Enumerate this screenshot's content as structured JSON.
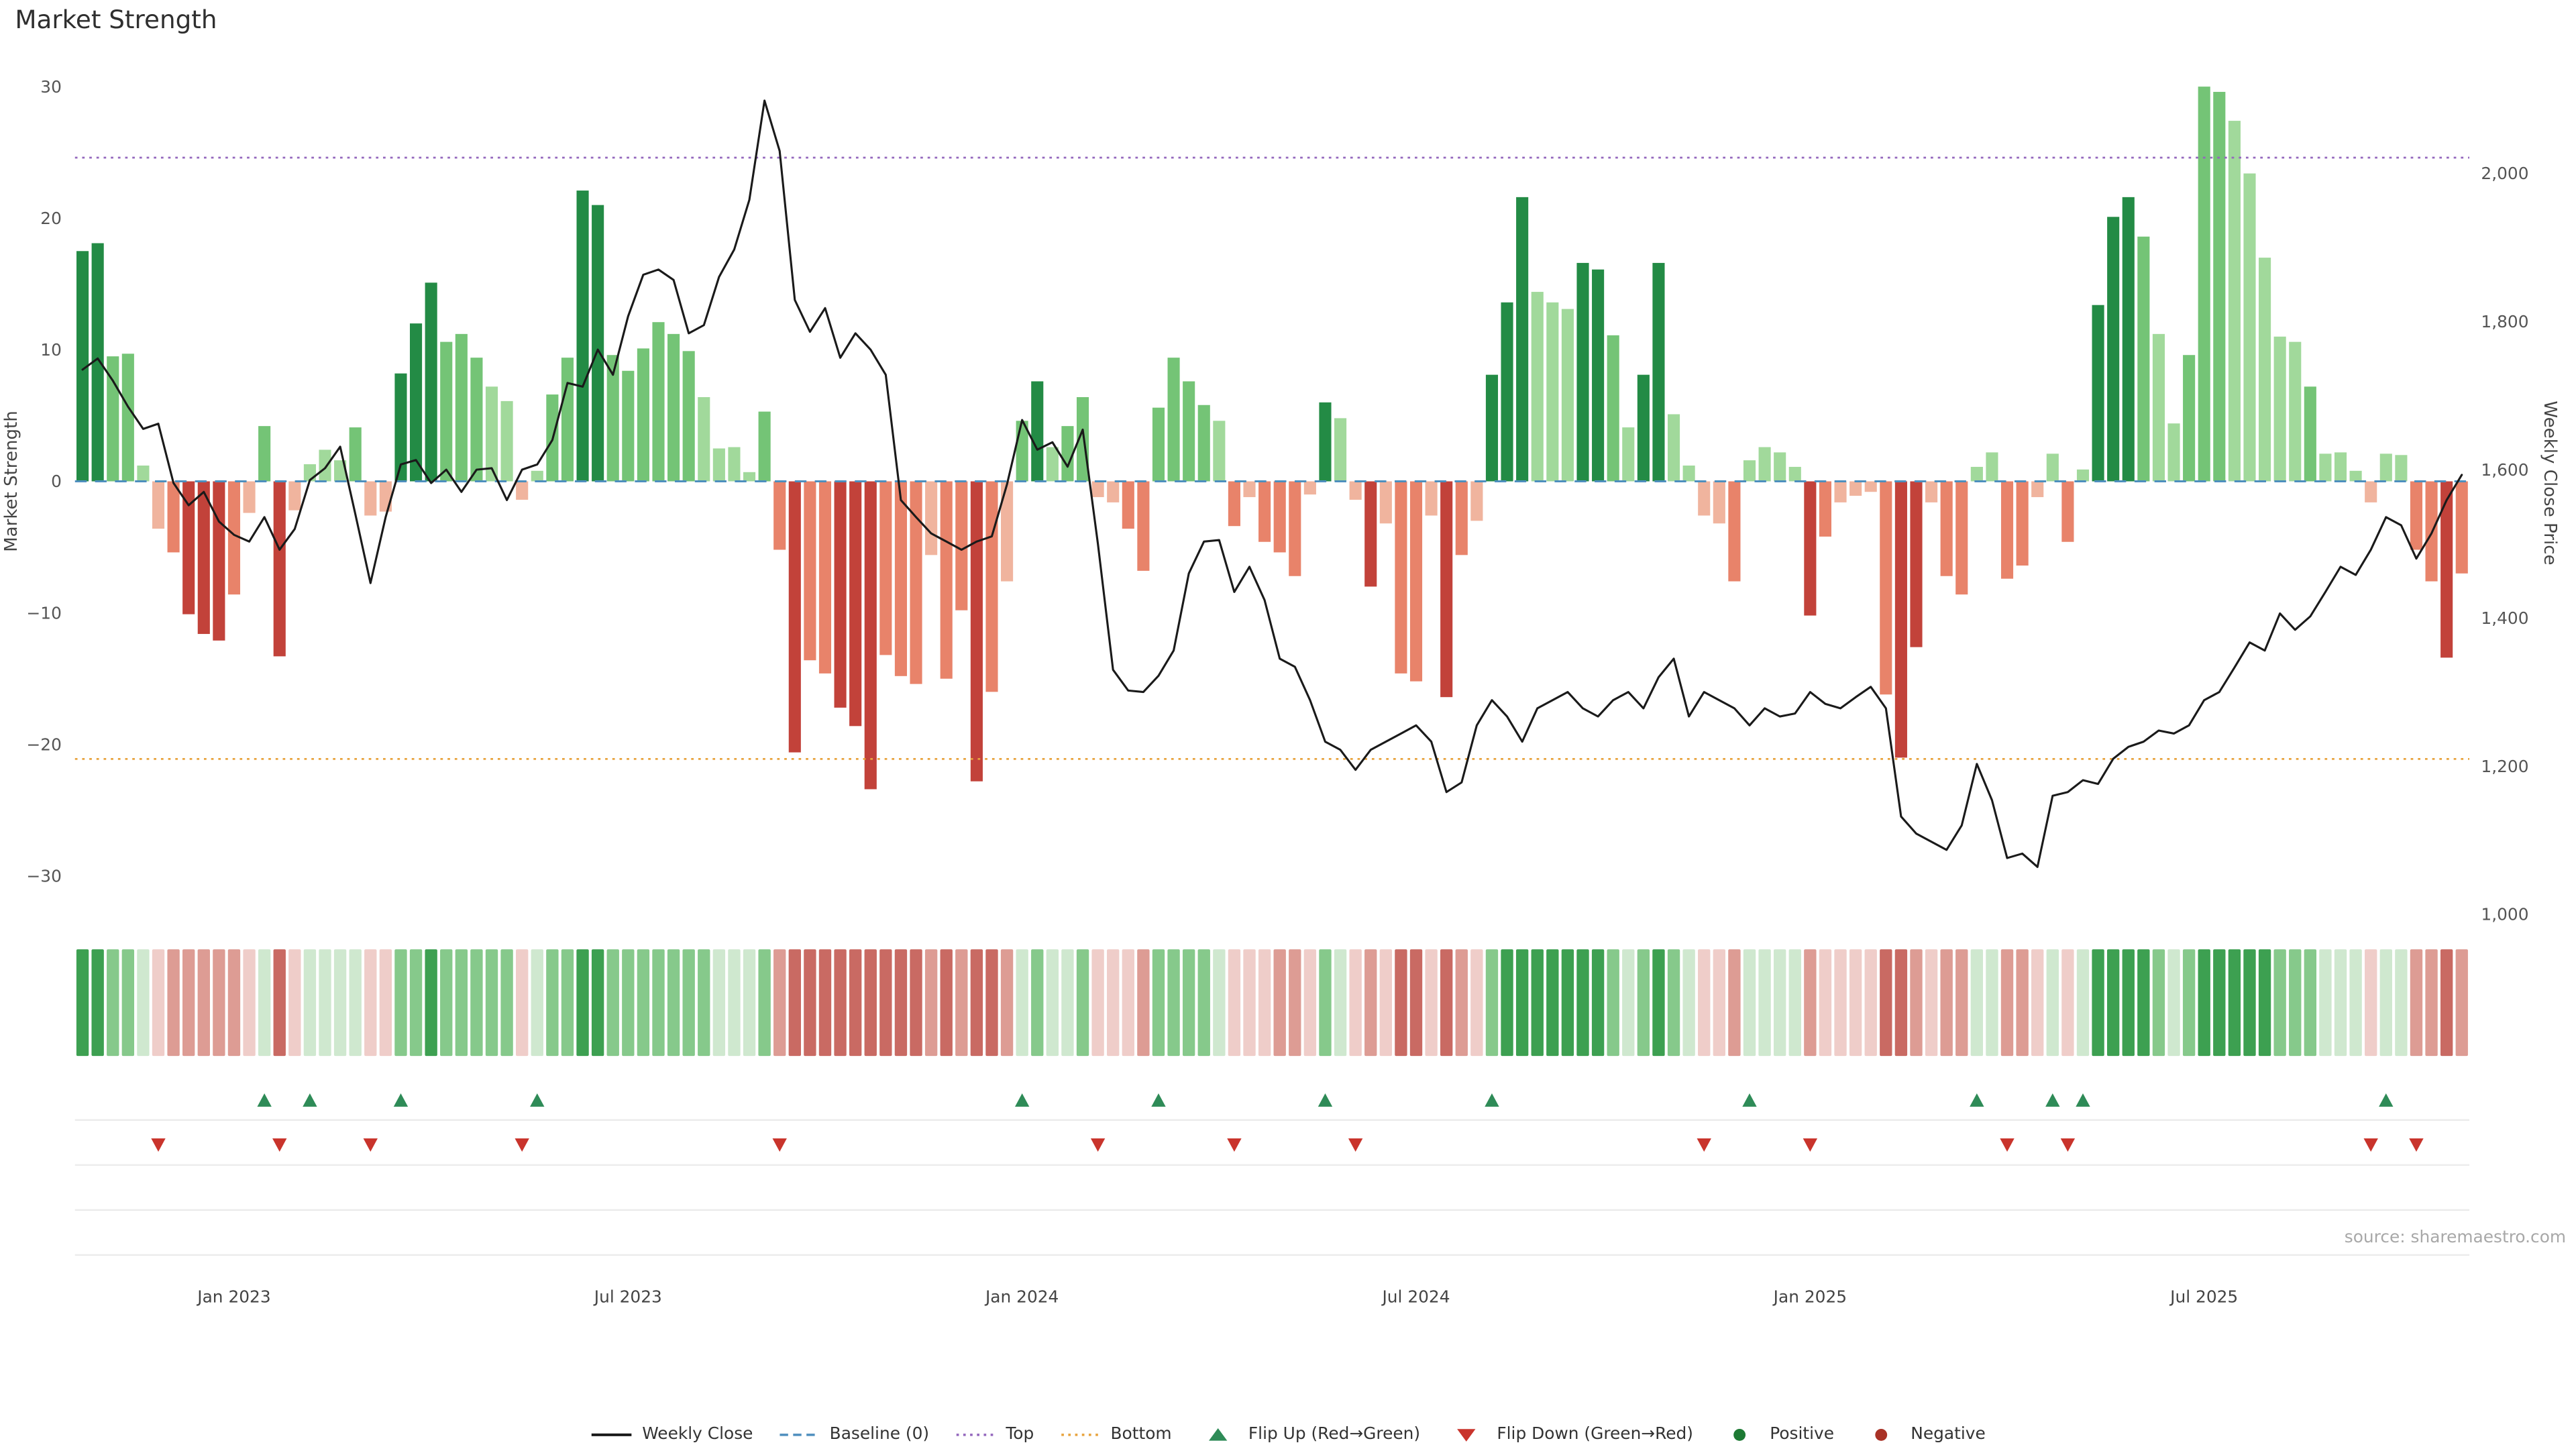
{
  "title": "Market Strength",
  "source": "source: sharemaestro.com",
  "axes": {
    "left_label": "Market Strength",
    "right_label": "Weekly Close Price",
    "left_tick_values": [
      30,
      20,
      10,
      0,
      -10,
      -20,
      -30
    ],
    "right_tick_values": [
      2000,
      1800,
      1600,
      1400,
      1200,
      1000
    ],
    "x_ticks": [
      {
        "label": "Jan 2023",
        "week": 11
      },
      {
        "label": "Jul 2023",
        "week": 37
      },
      {
        "label": "Jan 2024",
        "week": 63
      },
      {
        "label": "Jul 2024",
        "week": 89
      },
      {
        "label": "Jan 2025",
        "week": 115
      },
      {
        "label": "Jul 2025",
        "week": 141
      }
    ]
  },
  "colors": {
    "line": "#1a1a1a",
    "baseline": "#4e8fbe",
    "top": "#9467bd",
    "bottom": "#e8a33d",
    "flip_up": "#2e8b57",
    "flip_down": "#c9342c",
    "positive_dot": "#1d7a34",
    "negative_dot": "#a93226",
    "bar": {
      "g3": "#238b45",
      "g2": "#74c476",
      "g1": "#a1d99b",
      "r3": "#c2423a",
      "r2": "#e8836a",
      "r1": "#f0b49e"
    },
    "heat": {
      "g3": "#3da051",
      "g2": "#86c98b",
      "g1": "#cfe8cf",
      "r3": "#c96a63",
      "r2": "#dd9c94",
      "r1": "#efcdc9"
    },
    "grid": "#ececec"
  },
  "legend": [
    {
      "label": "Weekly Close",
      "type": "line",
      "color": "#1a1a1a"
    },
    {
      "label": "Baseline (0)",
      "type": "dashed",
      "color": "#4e8fbe"
    },
    {
      "label": "Top",
      "type": "dotted",
      "color": "#9467bd"
    },
    {
      "label": "Bottom",
      "type": "dotted",
      "color": "#e8a33d"
    },
    {
      "label": "Flip Up (Red→Green)",
      "type": "triangle-up",
      "color": "#2e8b57"
    },
    {
      "label": "Flip Down (Green→Red)",
      "type": "triangle-down",
      "color": "#c9342c"
    },
    {
      "label": "Positive",
      "type": "dot",
      "color": "#1d7a34"
    },
    {
      "label": "Negative",
      "type": "dot",
      "color": "#a93226"
    }
  ],
  "chart_data": {
    "type": "bar+line+heatmap",
    "title": "Market Strength",
    "frequency": "weekly",
    "start_date": "2022-10-28",
    "ylabel_left": "Market Strength",
    "ylabel_right": "Weekly Close Price",
    "ylim_left": [
      -31,
      31
    ],
    "ylim_right": [
      1000,
      2100
    ],
    "baseline": 0,
    "top_threshold": 24.6,
    "bottom_threshold": -21.1,
    "legend_position": "bottom",
    "strength": [
      17.5,
      18.1,
      9.5,
      9.7,
      1.2,
      -3.6,
      -5.4,
      -10.1,
      -11.6,
      -12.1,
      -8.6,
      -2.4,
      4.2,
      -13.3,
      -2.2,
      1.3,
      2.4,
      1.6,
      4.1,
      -2.6,
      -2.3,
      8.2,
      12.0,
      15.1,
      10.6,
      11.2,
      9.4,
      7.2,
      6.1,
      -1.4,
      0.8,
      6.6,
      9.4,
      22.1,
      21.0,
      9.6,
      8.4,
      10.1,
      12.1,
      11.2,
      9.9,
      6.4,
      2.5,
      2.6,
      0.7,
      5.3,
      -5.2,
      -20.6,
      -13.6,
      -14.6,
      -17.2,
      -18.6,
      -23.4,
      -13.2,
      -14.8,
      -15.4,
      -5.6,
      -15.0,
      -9.8,
      -22.8,
      -16.0,
      -7.6,
      4.6,
      7.6,
      2.6,
      4.2,
      6.4,
      -1.2,
      -1.6,
      -3.6,
      -6.8,
      5.6,
      9.4,
      7.6,
      5.8,
      4.6,
      -3.4,
      -1.2,
      -4.6,
      -5.4,
      -7.2,
      -1.0,
      6.0,
      4.8,
      -1.4,
      -8.0,
      -3.2,
      -14.6,
      -15.2,
      -2.6,
      -16.4,
      -5.6,
      -3.0,
      8.1,
      13.6,
      21.6,
      14.4,
      13.6,
      13.1,
      16.6,
      16.1,
      11.1,
      4.1,
      8.1,
      16.6,
      5.1,
      1.2,
      -2.6,
      -3.2,
      -7.6,
      1.6,
      2.6,
      2.2,
      1.1,
      -10.2,
      -4.2,
      -1.6,
      -1.1,
      -0.8,
      -16.2,
      -21.0,
      -12.6,
      -1.6,
      -7.2,
      -8.6,
      1.1,
      2.2,
      -7.4,
      -6.4,
      -1.2,
      2.1,
      -4.6,
      0.9,
      13.4,
      20.1,
      21.6,
      18.6,
      11.2,
      4.4,
      9.6,
      30.0,
      29.6,
      27.4,
      23.4,
      17.0,
      11.0,
      10.6,
      7.2,
      2.1,
      2.2,
      0.8,
      -1.6,
      2.1,
      2.0,
      -5.2,
      -7.6,
      -13.4,
      -7.0
    ],
    "tone": [
      "g3",
      "g3",
      "g2",
      "g2",
      "g1",
      "r1",
      "r2",
      "r3",
      "r3",
      "r3",
      "r2",
      "r1",
      "g2",
      "r3",
      "r1",
      "g1",
      "g1",
      "g1",
      "g2",
      "r1",
      "r1",
      "g3",
      "g3",
      "g3",
      "g2",
      "g2",
      "g2",
      "g1",
      "g1",
      "r1",
      "g1",
      "g2",
      "g2",
      "g3",
      "g3",
      "g2",
      "g2",
      "g2",
      "g2",
      "g2",
      "g2",
      "g1",
      "g1",
      "g1",
      "g1",
      "g2",
      "r2",
      "r3",
      "r2",
      "r2",
      "r3",
      "r3",
      "r3",
      "r2",
      "r2",
      "r2",
      "r1",
      "r2",
      "r2",
      "r3",
      "r2",
      "r1",
      "g2",
      "g3",
      "g1",
      "g2",
      "g2",
      "r1",
      "r1",
      "r2",
      "r2",
      "g2",
      "g2",
      "g2",
      "g2",
      "g1",
      "r2",
      "r1",
      "r2",
      "r2",
      "r2",
      "r1",
      "g3",
      "g1",
      "r1",
      "r3",
      "r1",
      "r2",
      "r2",
      "r1",
      "r3",
      "r2",
      "r1",
      "g3",
      "g3",
      "g3",
      "g1",
      "g1",
      "g1",
      "g3",
      "g3",
      "g2",
      "g1",
      "g3",
      "g3",
      "g1",
      "g1",
      "r1",
      "r1",
      "r2",
      "g1",
      "g1",
      "g1",
      "g1",
      "r3",
      "r2",
      "r1",
      "r1",
      "r1",
      "r2",
      "r3",
      "r3",
      "r1",
      "r2",
      "r2",
      "g1",
      "g1",
      "r2",
      "r2",
      "r1",
      "g1",
      "r2",
      "g1",
      "g3",
      "g3",
      "g3",
      "g2",
      "g1",
      "g1",
      "g2",
      "g2",
      "g2",
      "g1",
      "g1",
      "g1",
      "g1",
      "g1",
      "g2",
      "g1",
      "g1",
      "g1",
      "r1",
      "g1",
      "g1",
      "r2",
      "r2",
      "r3",
      "r2"
    ],
    "close": [
      1735,
      1750,
      1720,
      1685,
      1655,
      1662,
      1582,
      1552,
      1570,
      1530,
      1512,
      1503,
      1536,
      1492,
      1520,
      1586,
      1602,
      1631,
      1540,
      1447,
      1536,
      1607,
      1613,
      1582,
      1600,
      1570,
      1600,
      1602,
      1559,
      1600,
      1607,
      1640,
      1717,
      1712,
      1762,
      1728,
      1807,
      1863,
      1870,
      1856,
      1784,
      1795,
      1860,
      1897,
      1964,
      2098,
      2030,
      1829,
      1786,
      1818,
      1751,
      1784,
      1762,
      1728,
      1559,
      1536,
      1514,
      1503,
      1492,
      1503,
      1510,
      1580,
      1667,
      1627,
      1637,
      1604,
      1654,
      1500,
      1330,
      1302,
      1300,
      1322,
      1356,
      1460,
      1503,
      1505,
      1435,
      1469,
      1424,
      1345,
      1334,
      1289,
      1233,
      1222,
      1195,
      1222,
      1233,
      1244,
      1255,
      1233,
      1165,
      1178,
      1255,
      1289,
      1267,
      1233,
      1278,
      1289,
      1300,
      1278,
      1267,
      1289,
      1300,
      1278,
      1320,
      1345,
      1267,
      1300,
      1289,
      1278,
      1255,
      1278,
      1267,
      1271,
      1300,
      1284,
      1278,
      1293,
      1307,
      1278,
      1132,
      1109,
      1098,
      1087,
      1120,
      1203,
      1154,
      1076,
      1082,
      1064,
      1160,
      1165,
      1181,
      1176,
      1210,
      1226,
      1233,
      1248,
      1244,
      1255,
      1289,
      1300,
      1333,
      1367,
      1356,
      1406,
      1384,
      1402,
      1435,
      1469,
      1458,
      1492,
      1536,
      1525,
      1480,
      1514,
      1559,
      1593
    ]
  }
}
